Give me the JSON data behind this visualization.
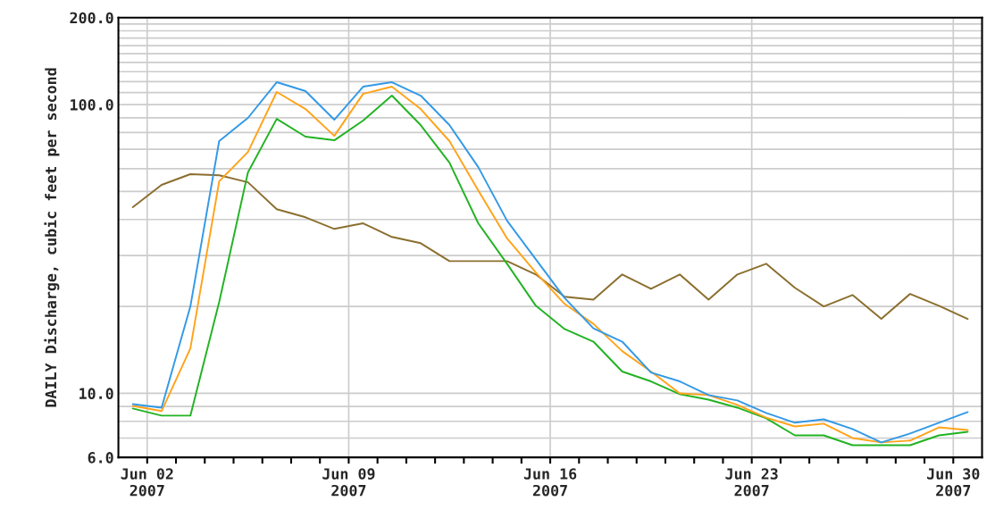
{
  "chart_data": {
    "type": "line",
    "ylabel": "DAILY Discharge, cubic feet per second",
    "log": "y",
    "grid": true,
    "x": [
      "2007-06-01T12:00",
      "2007-06-02T12:00",
      "2007-06-03T12:00",
      "2007-06-04T12:00",
      "2007-06-05T12:00",
      "2007-06-06T12:00",
      "2007-06-07T12:00",
      "2007-06-08T12:00",
      "2007-06-09T12:00",
      "2007-06-10T12:00",
      "2007-06-11T12:00",
      "2007-06-12T12:00",
      "2007-06-13T12:00",
      "2007-06-14T12:00",
      "2007-06-15T12:00",
      "2007-06-16T12:00",
      "2007-06-17T12:00",
      "2007-06-18T12:00",
      "2007-06-19T12:00",
      "2007-06-20T12:00",
      "2007-06-21T12:00",
      "2007-06-22T12:00",
      "2007-06-23T12:00",
      "2007-06-24T12:00",
      "2007-06-25T12:00",
      "2007-06-26T12:00",
      "2007-06-27T12:00",
      "2007-06-28T12:00",
      "2007-06-29T12:00",
      "2007-06-30T12:00"
    ],
    "series": [
      {
        "color": "#8b6f2e",
        "values": [
          44.1,
          52.7,
          57.4,
          56.9,
          53.8,
          43.4,
          40.7,
          37.1,
          38.8,
          34.8,
          33.1,
          28.7,
          28.7,
          28.7,
          25.8,
          21.6,
          21.1,
          25.8,
          23.0,
          25.8,
          21.1,
          25.8,
          28.1,
          23.2,
          20.0,
          21.9,
          18.1,
          22.1,
          20.1,
          18.1
        ]
      },
      {
        "color": "#22b322",
        "values": [
          8.86,
          8.37,
          8.37,
          20.7,
          58.2,
          89.2,
          77.4,
          75.2,
          88.0,
          107.4,
          84.9,
          62.9,
          38.8,
          28.1,
          20.1,
          16.7,
          15.1,
          11.9,
          11.0,
          9.93,
          9.51,
          8.92,
          8.19,
          7.15,
          7.15,
          6.61,
          6.61,
          6.61,
          7.15,
          7.36
        ]
      },
      {
        "color": "#ffa31a",
        "values": [
          9.05,
          8.68,
          14.3,
          54.2,
          68.5,
          110.5,
          96.5,
          77.9,
          108.9,
          115.3,
          96.5,
          74.7,
          50.4,
          34.4,
          26.2,
          20.4,
          17.4,
          14.0,
          11.9,
          10.0,
          9.86,
          9.12,
          8.24,
          7.68,
          7.85,
          7.0,
          6.76,
          6.86,
          7.62,
          7.46
        ]
      },
      {
        "color": "#3399e6",
        "values": [
          9.18,
          8.92,
          20.0,
          74.7,
          89.9,
          119.5,
          111.3,
          88.6,
          115.3,
          119.5,
          107.4,
          84.9,
          60.7,
          39.6,
          29.1,
          21.4,
          16.8,
          15.1,
          11.8,
          11.0,
          9.86,
          9.45,
          8.55,
          7.91,
          8.13,
          7.52,
          6.76,
          7.26,
          7.91,
          8.61
        ]
      }
    ],
    "xlim": [
      "2007-06-01",
      "2007-07-01"
    ],
    "xticks": [
      {
        "value": "2007-06-02",
        "label": "Jun 02\n2007"
      },
      {
        "value": "2007-06-03",
        "label": null
      },
      {
        "value": "2007-06-04",
        "label": null
      },
      {
        "value": "2007-06-05",
        "label": null
      },
      {
        "value": "2007-06-06",
        "label": null
      },
      {
        "value": "2007-06-07",
        "label": null
      },
      {
        "value": "2007-06-08",
        "label": null
      },
      {
        "value": "2007-06-09",
        "label": "Jun 09\n2007"
      },
      {
        "value": "2007-06-10",
        "label": null
      },
      {
        "value": "2007-06-11",
        "label": null
      },
      {
        "value": "2007-06-12",
        "label": null
      },
      {
        "value": "2007-06-13",
        "label": null
      },
      {
        "value": "2007-06-14",
        "label": null
      },
      {
        "value": "2007-06-15",
        "label": null
      },
      {
        "value": "2007-06-16",
        "label": "Jun 16\n2007"
      },
      {
        "value": "2007-06-17",
        "label": null
      },
      {
        "value": "2007-06-18",
        "label": null
      },
      {
        "value": "2007-06-19",
        "label": null
      },
      {
        "value": "2007-06-20",
        "label": null
      },
      {
        "value": "2007-06-21",
        "label": null
      },
      {
        "value": "2007-06-22",
        "label": null
      },
      {
        "value": "2007-06-23",
        "label": "Jun 23\n2007"
      },
      {
        "value": "2007-06-24",
        "label": null
      },
      {
        "value": "2007-06-25",
        "label": null
      },
      {
        "value": "2007-06-26",
        "label": null
      },
      {
        "value": "2007-06-27",
        "label": null
      },
      {
        "value": "2007-06-28",
        "label": null
      },
      {
        "value": "2007-06-29",
        "label": null
      },
      {
        "value": "2007-06-30",
        "label": "Jun 30\n2007"
      }
    ],
    "ylim": [
      6,
      200
    ],
    "yticks": [
      {
        "value": 6,
        "label": "6.0"
      },
      {
        "value": 7,
        "label": null
      },
      {
        "value": 8,
        "label": null
      },
      {
        "value": 9,
        "label": null
      },
      {
        "value": 10,
        "label": "10.0"
      },
      {
        "value": 20,
        "label": null
      },
      {
        "value": 30,
        "label": null
      },
      {
        "value": 40,
        "label": null
      },
      {
        "value": 50,
        "label": null
      },
      {
        "value": 60,
        "label": null
      },
      {
        "value": 70,
        "label": null
      },
      {
        "value": 80,
        "label": null
      },
      {
        "value": 90,
        "label": null
      },
      {
        "value": 100,
        "label": "100.0"
      },
      {
        "value": 110,
        "label": null
      },
      {
        "value": 120,
        "label": null
      },
      {
        "value": 130,
        "label": null
      },
      {
        "value": 140,
        "label": null
      },
      {
        "value": 150,
        "label": null
      },
      {
        "value": 160,
        "label": null
      },
      {
        "value": 170,
        "label": null
      },
      {
        "value": 180,
        "label": null
      },
      {
        "value": 190,
        "label": null
      },
      {
        "value": 200,
        "label": "200.0"
      }
    ]
  }
}
